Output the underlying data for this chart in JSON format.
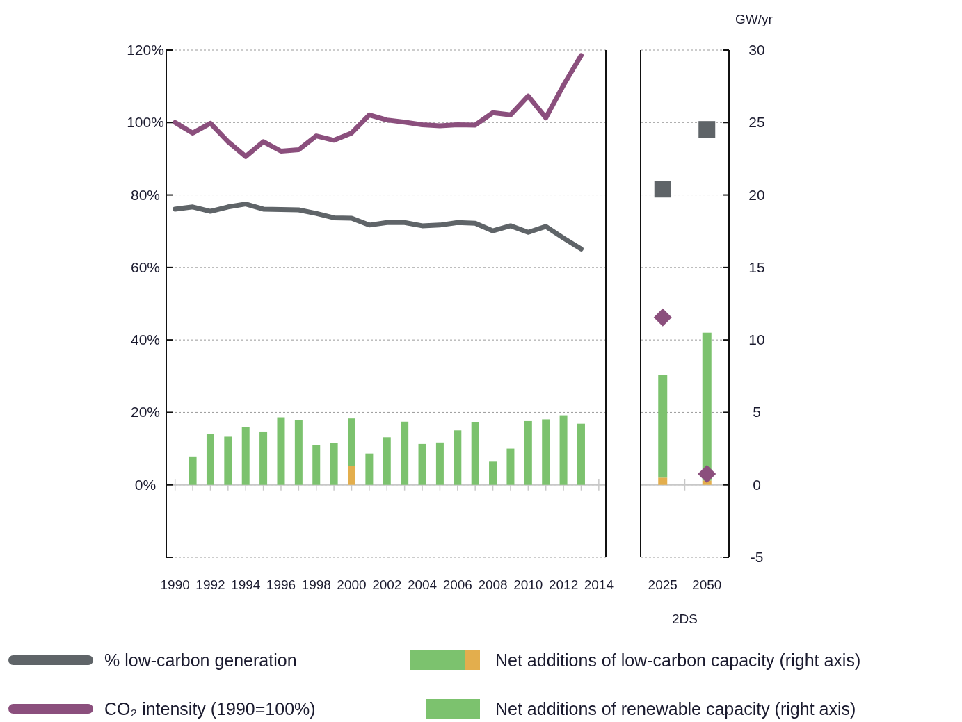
{
  "chart_data": [
    {
      "type": "line",
      "x": [
        1990,
        1991,
        1992,
        1993,
        1994,
        1995,
        1996,
        1997,
        1998,
        1999,
        2000,
        2001,
        2002,
        2003,
        2004,
        2005,
        2006,
        2007,
        2008,
        2009,
        2010,
        2011,
        2012,
        2013
      ],
      "xlim": [
        1989.5,
        2014.4
      ],
      "xticks": [
        1990,
        {
          "value": 1991,
          "label": null
        },
        1992,
        {
          "value": 1993,
          "label": null
        },
        1994,
        {
          "value": 1995,
          "label": null
        },
        1996,
        {
          "value": 1997,
          "label": null
        },
        1998,
        {
          "value": 1999,
          "label": null
        },
        2000,
        {
          "value": 2001,
          "label": null
        },
        2002,
        {
          "value": 2003,
          "label": null
        },
        2004,
        {
          "value": 2005,
          "label": null
        },
        2006,
        {
          "value": 2007,
          "label": null
        },
        2008,
        {
          "value": 2009,
          "label": null
        },
        2010,
        {
          "value": 2011,
          "label": null
        },
        2012,
        {
          "value": 2013,
          "label": null
        },
        2014
      ],
      "ylim": [
        -20,
        120
      ],
      "yticks": [
        {
          "value": -20,
          "label": null
        },
        {
          "value": 0,
          "label": "0%"
        },
        {
          "value": 20,
          "label": "20%"
        },
        {
          "value": 40,
          "label": "40%"
        },
        {
          "value": 60,
          "label": "60%"
        },
        {
          "value": 80,
          "label": "80%"
        },
        {
          "value": 100,
          "label": "100%"
        },
        {
          "value": 120,
          "label": "120%"
        }
      ],
      "y2lim": [
        -5,
        30
      ],
      "grid": "y",
      "legend": "bottom",
      "stacked": true,
      "line_style": "solid",
      "series": [
        {
          "name": "% low-carbon generation",
          "color": "#5f6468",
          "values": [
            76.1,
            76.7,
            75.5,
            76.7,
            77.5,
            76.1,
            76.0,
            75.9,
            74.9,
            73.7,
            73.6,
            71.7,
            72.4,
            72.4,
            71.5,
            71.7,
            72.4,
            72.2,
            70.1,
            71.5,
            69.7,
            71.3,
            68.1,
            65.1
          ]
        },
        {
          "name": "CO₂ intensity (1990=100%)",
          "color": "#8b4f7d",
          "values": [
            100,
            97.1,
            99.8,
            94.7,
            90.6,
            94.7,
            92.1,
            92.5,
            96.3,
            95.1,
            97.1,
            102.1,
            100.7,
            100.1,
            99.4,
            99.1,
            99.4,
            99.3,
            102.7,
            102.1,
            107.3,
            101.3,
            110.3,
            118.5
          ]
        },
        {
          "name": "Net additions of low-carbon capacity (right axis)",
          "type": "bar",
          "axis": "y2",
          "color": "#e3ae4d",
          "x": [
            1991,
            1992,
            1993,
            1994,
            1995,
            1996,
            1997,
            1998,
            1999,
            2000,
            2001,
            2002,
            2003,
            2004,
            2005,
            2006,
            2007,
            2008,
            2009,
            2010,
            2011,
            2012,
            2013
          ],
          "values": [
            0,
            0,
            0,
            0,
            0,
            0,
            0,
            0,
            0,
            1.3,
            0,
            0,
            0,
            0,
            0,
            0,
            0,
            0,
            0,
            0,
            0,
            0,
            0
          ]
        },
        {
          "name": "Net additions of renewable capacity (right axis)",
          "type": "bar",
          "axis": "y2",
          "color": "#7cc26e",
          "x": [
            1991,
            1992,
            1993,
            1994,
            1995,
            1996,
            1997,
            1998,
            1999,
            2000,
            2001,
            2002,
            2003,
            2004,
            2005,
            2006,
            2007,
            2008,
            2009,
            2010,
            2011,
            2012,
            2013
          ],
          "values": [
            1.96,
            3.52,
            3.32,
            3.98,
            3.68,
            4.66,
            4.46,
            2.72,
            2.88,
            3.28,
            2.16,
            3.28,
            4.36,
            2.82,
            2.92,
            3.76,
            4.32,
            1.6,
            2.5,
            4.4,
            4.52,
            4.8,
            4.22
          ]
        }
      ]
    },
    {
      "type": "scatter",
      "categories": [
        "2025",
        "2050"
      ],
      "xlabel": "2DS",
      "y2label": "GW/yr",
      "ylim": [
        -20,
        120
      ],
      "y2lim": [
        -5,
        30
      ],
      "y2ticks": [
        -5,
        0,
        5,
        10,
        15,
        20,
        25,
        30
      ],
      "grid": "y",
      "stacked": true,
      "series": [
        {
          "type": "bar",
          "axis": "y2",
          "color": "#e3ae4d",
          "values": [
            0.5,
            0.3
          ]
        },
        {
          "type": "bar",
          "axis": "y2",
          "color": "#7cc26e",
          "values": [
            7.1,
            10.2
          ]
        },
        {
          "marker": "square",
          "color": "#5f6468",
          "values": [
            81.6,
            98.1
          ]
        },
        {
          "marker": "diamond",
          "color": "#8b4f7d",
          "values": [
            46.2,
            3.0
          ]
        }
      ]
    }
  ]
}
